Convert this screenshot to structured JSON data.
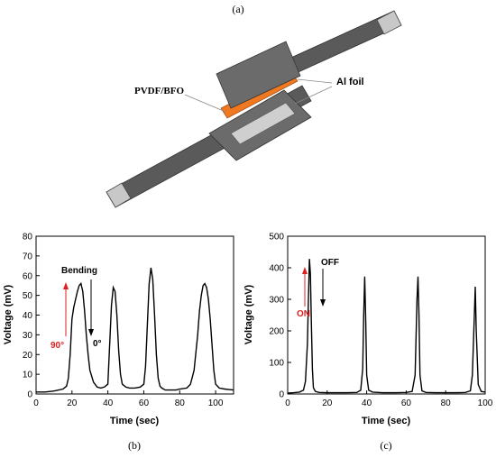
{
  "panel_labels": {
    "a": "(a)",
    "b": "(b)",
    "c": "(c)"
  },
  "device": {
    "label_pvdf": "PVDF/BFO",
    "label_al": "Al foil",
    "colors": {
      "plate": "#6b6b6b",
      "strip": "#5a5a5a",
      "tab": "#c8c8c8",
      "film": "#f07820"
    }
  },
  "chart_data": [
    {
      "type": "line",
      "xlabel": "Time (sec)",
      "ylabel": "Voltage (mV)",
      "xlim": [
        0,
        110
      ],
      "ylim": [
        0,
        80
      ],
      "xticks": [
        0,
        20,
        40,
        60,
        80,
        100
      ],
      "yticks": [
        0,
        10,
        20,
        30,
        40,
        50,
        60,
        70,
        80
      ],
      "grid": false,
      "annotations": {
        "top_label": "Bending",
        "up_label": "90°",
        "down_label": "0°"
      },
      "annotation_colors": {
        "up": "#e0201e",
        "down": "#000000"
      },
      "series": [
        {
          "x": [
            0,
            5,
            10,
            15,
            17,
            18,
            19,
            20,
            21,
            22,
            23,
            24,
            25,
            26,
            27,
            28,
            29,
            30,
            32,
            34,
            36,
            38,
            40,
            41,
            42,
            43,
            44,
            45,
            46,
            47,
            48,
            50,
            52,
            55,
            58,
            60,
            61,
            62,
            63,
            64,
            65,
            66,
            67,
            68,
            69,
            70,
            72,
            75,
            78,
            80,
            84,
            86,
            88,
            90,
            91,
            92,
            93,
            94,
            95,
            96,
            97,
            98,
            99,
            100,
            102,
            105,
            110
          ],
          "y": [
            1,
            1,
            1.5,
            2.5,
            4,
            8,
            20,
            38,
            44,
            48,
            52,
            55,
            56,
            52,
            42,
            30,
            20,
            12,
            6,
            3.5,
            3,
            3.5,
            5,
            25,
            45,
            54,
            52,
            40,
            22,
            10,
            5,
            3.5,
            3,
            3,
            3.5,
            5,
            14,
            35,
            56,
            64,
            58,
            40,
            20,
            8,
            4,
            3,
            2,
            2,
            2,
            2.5,
            3,
            5,
            12,
            30,
            42,
            50,
            55,
            56,
            54,
            48,
            38,
            25,
            12,
            5,
            3,
            2.5,
            2
          ]
        }
      ]
    },
    {
      "type": "line",
      "xlabel": "Time (sec)",
      "ylabel": "Voltage (mV)",
      "xlim": [
        0,
        100
      ],
      "ylim": [
        0,
        500
      ],
      "xticks": [
        0,
        20,
        40,
        60,
        80,
        100
      ],
      "yticks": [
        0,
        100,
        200,
        300,
        400,
        500
      ],
      "grid": false,
      "annotations": {
        "top_label": "OFF",
        "up_label": "ON"
      },
      "annotation_colors": {
        "up": "#e0201e",
        "down": "#000000"
      },
      "series": [
        {
          "x": [
            0,
            3,
            6,
            8,
            9,
            10,
            10.5,
            11,
            11.5,
            12,
            12.5,
            13,
            14,
            16,
            20,
            25,
            30,
            35,
            37,
            38,
            38.5,
            39,
            39.5,
            40,
            41,
            43,
            48,
            55,
            60,
            63,
            64.5,
            65.5,
            66,
            66.5,
            67,
            68,
            70,
            75,
            80,
            85,
            90,
            92.5,
            93.5,
            94.5,
            95,
            95.5,
            96.5,
            98,
            100
          ],
          "y": [
            3,
            4,
            6,
            12,
            40,
            160,
            300,
            428,
            380,
            220,
            80,
            20,
            8,
            5,
            4,
            4,
            4,
            5,
            12,
            80,
            250,
            372,
            240,
            60,
            12,
            6,
            4,
            4,
            5,
            8,
            60,
            300,
            372,
            250,
            60,
            10,
            5,
            4,
            4,
            4,
            5,
            10,
            60,
            250,
            340,
            200,
            30,
            8,
            6
          ]
        }
      ]
    }
  ]
}
